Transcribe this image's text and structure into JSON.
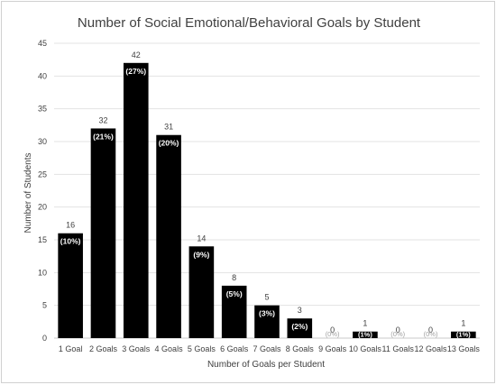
{
  "chart_data": {
    "type": "bar",
    "title": "Number of Social Emotional/Behavioral Goals by Student",
    "xlabel": "Number of Goals per Student",
    "ylabel": "Number of Students",
    "ylim": [
      0,
      45
    ],
    "yticks": [
      "0",
      "5",
      "10",
      "15",
      "20",
      "25",
      "30",
      "35",
      "40",
      "45"
    ],
    "grid": true,
    "bar_color": "#000000",
    "categories": [
      "1 Goal",
      "2 Goals",
      "3 Goals",
      "4 Goals",
      "5 Goals",
      "6 Goals",
      "7 Goals",
      "8 Goals",
      "9 Goals",
      "10 Goals",
      "11 Goals",
      "12 Goals",
      "13 Goals"
    ],
    "values": [
      16,
      32,
      42,
      31,
      14,
      8,
      5,
      3,
      0,
      1,
      0,
      0,
      1
    ],
    "value_labels": [
      "16",
      "32",
      "42",
      "31",
      "14",
      "8",
      "5",
      "3",
      "0",
      "1",
      "0",
      "0",
      "1"
    ],
    "percent_labels": [
      "(10%)",
      "(21%)",
      "(27%)",
      "(20%)",
      "(9%)",
      "(5%)",
      "(3%)",
      "(2%)",
      "(0%)",
      "(1%)",
      "(0%)",
      "(0%)",
      "(1%)"
    ]
  }
}
